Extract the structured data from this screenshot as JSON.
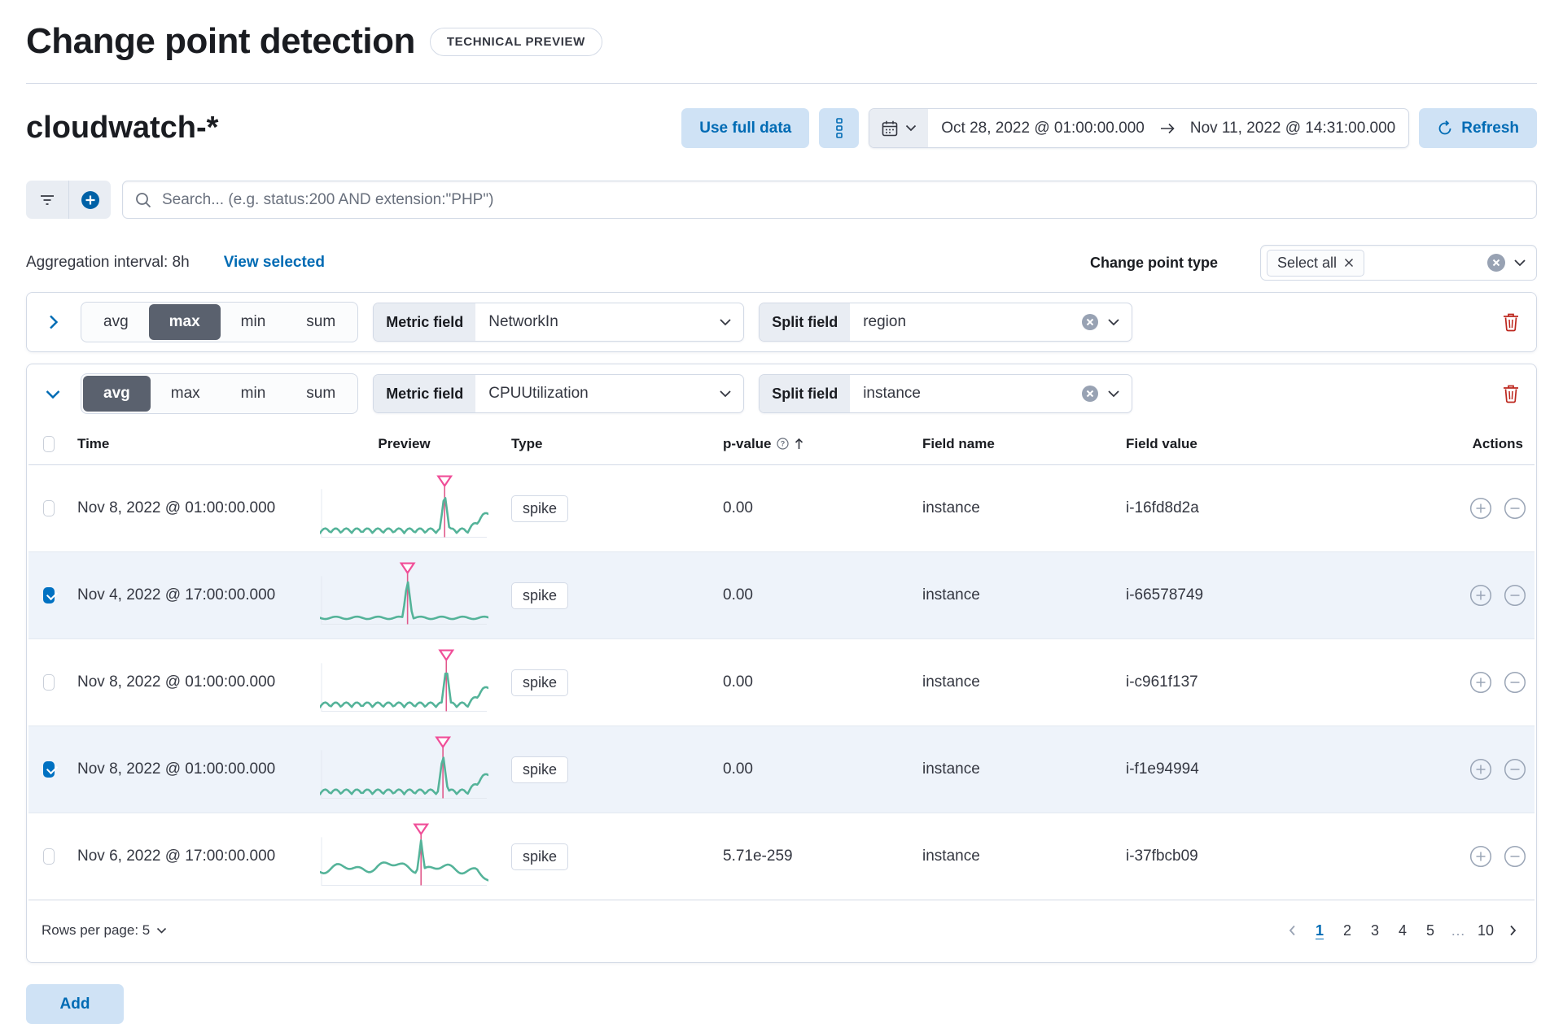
{
  "page": {
    "title": "Change point detection",
    "badge": "TECHNICAL PREVIEW"
  },
  "header": {
    "index_pattern": "cloudwatch-*",
    "use_full_data_label": "Use full data",
    "date_range": {
      "start": "Oct 28, 2022 @ 01:00:00.000",
      "end": "Nov 11, 2022 @ 14:31:00.000"
    },
    "refresh_label": "Refresh"
  },
  "search": {
    "placeholder": "Search... (e.g. status:200 AND extension:\"PHP\")"
  },
  "controls": {
    "aggregation_interval": "Aggregation interval: 8h",
    "view_selected_label": "View selected",
    "change_point_type_label": "Change point type",
    "change_point_type_value": "Select all"
  },
  "configs": [
    {
      "fn_options": [
        "avg",
        "max",
        "min",
        "sum"
      ],
      "selected_fn": "max",
      "metric_label": "Metric field",
      "metric_value": "NetworkIn",
      "split_label": "Split field",
      "split_value": "region",
      "expanded": false
    },
    {
      "fn_options": [
        "avg",
        "max",
        "min",
        "sum"
      ],
      "selected_fn": "avg",
      "metric_label": "Metric field",
      "metric_value": "CPUUtilization",
      "split_label": "Split field",
      "split_value": "instance",
      "expanded": true
    }
  ],
  "table": {
    "columns": [
      "Time",
      "Preview",
      "Type",
      "p-value",
      "Field name",
      "Field value",
      "Actions"
    ],
    "rows": [
      {
        "time": "Nov 8, 2022 @ 01:00:00.000",
        "type": "spike",
        "p_value": "0.00",
        "field_name": "instance",
        "field_value": "i-16fd8d2a",
        "selected": false,
        "preview": {
          "shape": "wave",
          "spike_x": 0.74
        }
      },
      {
        "time": "Nov 4, 2022 @ 17:00:00.000",
        "type": "spike",
        "p_value": "0.00",
        "field_name": "instance",
        "field_value": "i-66578749",
        "selected": true,
        "preview": {
          "shape": "flat",
          "spike_x": 0.52
        }
      },
      {
        "time": "Nov 8, 2022 @ 01:00:00.000",
        "type": "spike",
        "p_value": "0.00",
        "field_name": "instance",
        "field_value": "i-c961f137",
        "selected": false,
        "preview": {
          "shape": "wave",
          "spike_x": 0.75
        }
      },
      {
        "time": "Nov 8, 2022 @ 01:00:00.000",
        "type": "spike",
        "p_value": "0.00",
        "field_name": "instance",
        "field_value": "i-f1e94994",
        "selected": true,
        "preview": {
          "shape": "wave",
          "spike_x": 0.73
        }
      },
      {
        "time": "Nov 6, 2022 @ 17:00:00.000",
        "type": "spike",
        "p_value": "5.71e-259",
        "field_name": "instance",
        "field_value": "i-37fbcb09",
        "selected": false,
        "preview": {
          "shape": "noisy",
          "spike_x": 0.6
        }
      }
    ]
  },
  "pagination": {
    "rows_per_page_label": "Rows per page: 5",
    "pages": [
      "1",
      "2",
      "3",
      "4",
      "5",
      "…",
      "10"
    ],
    "active_page": "1"
  },
  "footer": {
    "add_label": "Add"
  },
  "colors": {
    "accent_green": "#54b399",
    "accent_pink": "#f04e98",
    "marker_line": "#e0598b",
    "primary": "#006BB4",
    "danger": "#bd271e"
  }
}
